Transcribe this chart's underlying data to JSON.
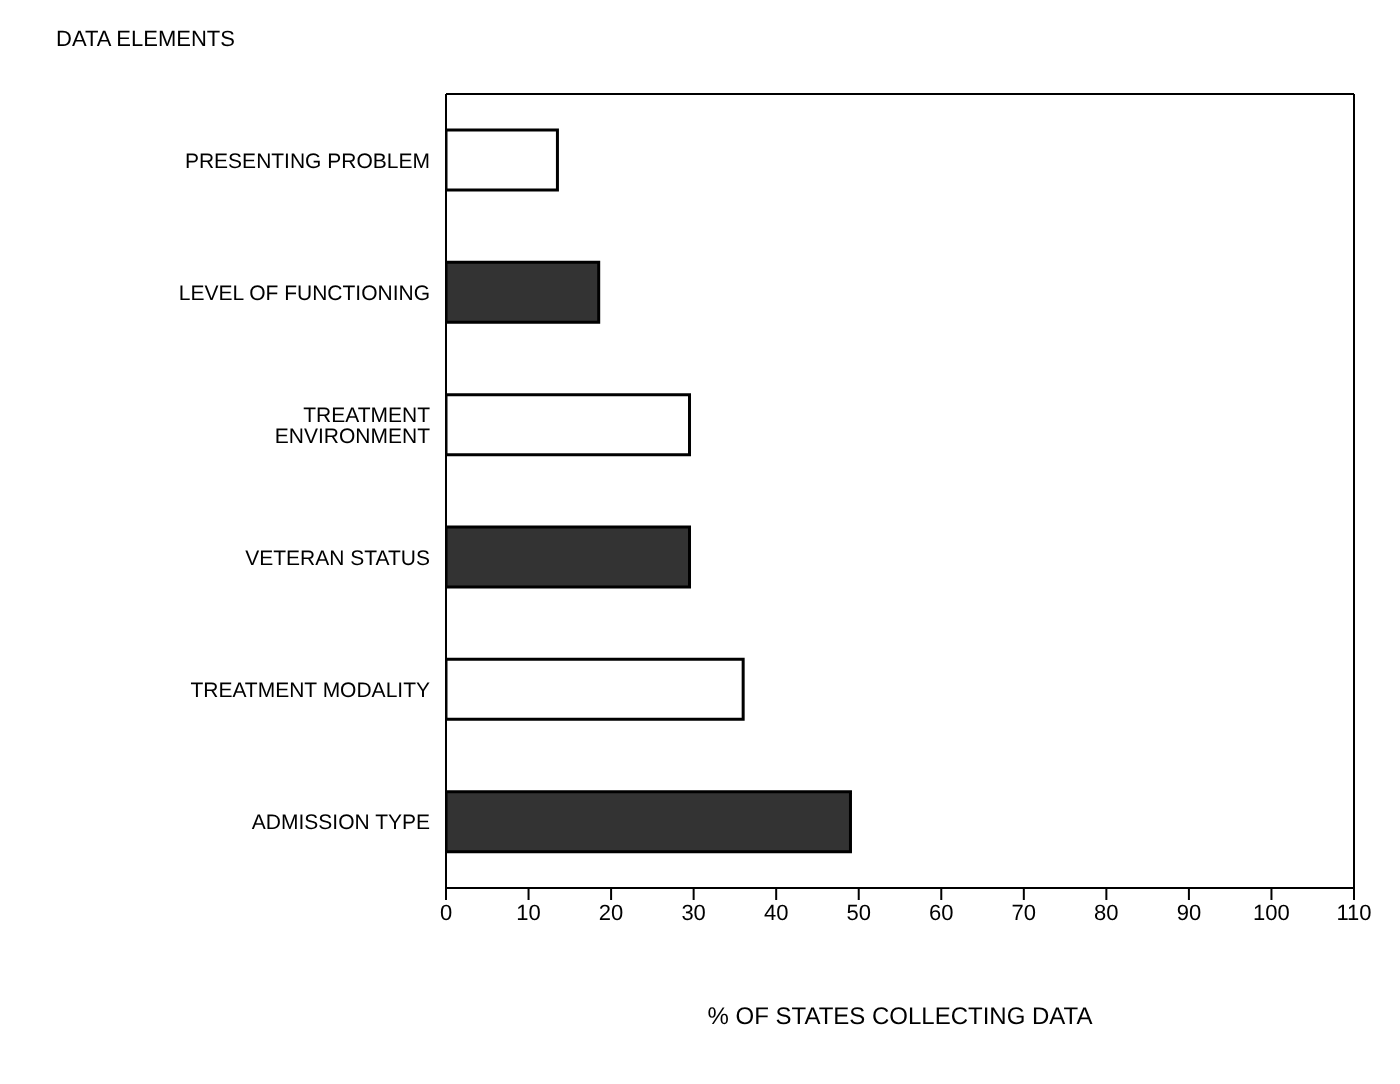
{
  "chart_data": {
    "type": "bar",
    "orientation": "horizontal",
    "ylabel": "DATA ELEMENTS",
    "xlabel": "% OF STATES COLLECTING DATA",
    "categories": [
      "PRESENTING PROBLEM",
      "LEVEL OF FUNCTIONING",
      "TREATMENT ENVIRONMENT",
      "VETERAN STATUS",
      "TREATMENT MODALITY",
      "ADMISSION TYPE"
    ],
    "values": [
      13.5,
      18.5,
      29.5,
      29.5,
      36,
      49
    ],
    "colors": [
      "#ffffff",
      "#333333",
      "#ffffff",
      "#333333",
      "#ffffff",
      "#333333"
    ],
    "xlim": [
      0,
      110
    ],
    "xticks": [
      0,
      10,
      20,
      30,
      40,
      50,
      60,
      70,
      80,
      90,
      100,
      110
    ],
    "grid": false,
    "legend": false
  }
}
